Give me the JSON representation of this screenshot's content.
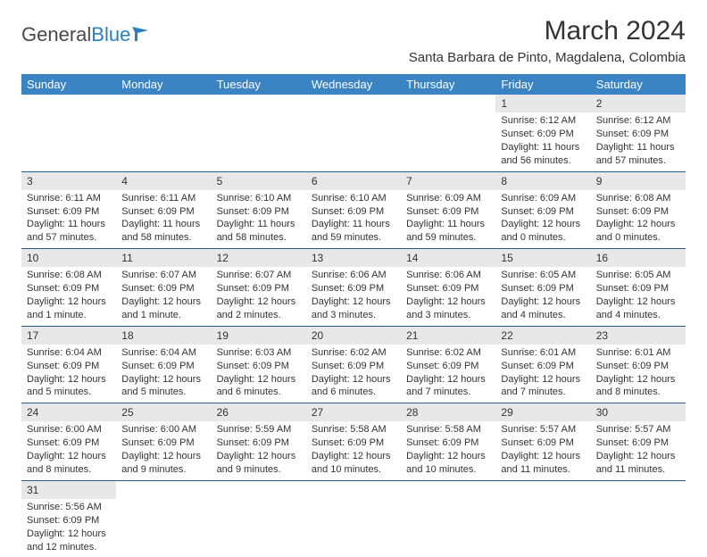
{
  "logo": {
    "part1": "General",
    "part2": "Blue"
  },
  "title": "March 2024",
  "location": "Santa Barbara de Pinto, Magdalena, Colombia",
  "colors": {
    "header_bg": "#3b84c4",
    "header_text": "#ffffff",
    "daynum_bg": "#e8e8e8",
    "border": "#2a5a8a",
    "text": "#333333",
    "logo_blue": "#2a7fbf"
  },
  "weekdays": [
    "Sunday",
    "Monday",
    "Tuesday",
    "Wednesday",
    "Thursday",
    "Friday",
    "Saturday"
  ],
  "weeks": [
    [
      null,
      null,
      null,
      null,
      null,
      {
        "n": "1",
        "sr": "Sunrise: 6:12 AM",
        "ss": "Sunset: 6:09 PM",
        "dl1": "Daylight: 11 hours",
        "dl2": "and 56 minutes."
      },
      {
        "n": "2",
        "sr": "Sunrise: 6:12 AM",
        "ss": "Sunset: 6:09 PM",
        "dl1": "Daylight: 11 hours",
        "dl2": "and 57 minutes."
      }
    ],
    [
      {
        "n": "3",
        "sr": "Sunrise: 6:11 AM",
        "ss": "Sunset: 6:09 PM",
        "dl1": "Daylight: 11 hours",
        "dl2": "and 57 minutes."
      },
      {
        "n": "4",
        "sr": "Sunrise: 6:11 AM",
        "ss": "Sunset: 6:09 PM",
        "dl1": "Daylight: 11 hours",
        "dl2": "and 58 minutes."
      },
      {
        "n": "5",
        "sr": "Sunrise: 6:10 AM",
        "ss": "Sunset: 6:09 PM",
        "dl1": "Daylight: 11 hours",
        "dl2": "and 58 minutes."
      },
      {
        "n": "6",
        "sr": "Sunrise: 6:10 AM",
        "ss": "Sunset: 6:09 PM",
        "dl1": "Daylight: 11 hours",
        "dl2": "and 59 minutes."
      },
      {
        "n": "7",
        "sr": "Sunrise: 6:09 AM",
        "ss": "Sunset: 6:09 PM",
        "dl1": "Daylight: 11 hours",
        "dl2": "and 59 minutes."
      },
      {
        "n": "8",
        "sr": "Sunrise: 6:09 AM",
        "ss": "Sunset: 6:09 PM",
        "dl1": "Daylight: 12 hours",
        "dl2": "and 0 minutes."
      },
      {
        "n": "9",
        "sr": "Sunrise: 6:08 AM",
        "ss": "Sunset: 6:09 PM",
        "dl1": "Daylight: 12 hours",
        "dl2": "and 0 minutes."
      }
    ],
    [
      {
        "n": "10",
        "sr": "Sunrise: 6:08 AM",
        "ss": "Sunset: 6:09 PM",
        "dl1": "Daylight: 12 hours",
        "dl2": "and 1 minute."
      },
      {
        "n": "11",
        "sr": "Sunrise: 6:07 AM",
        "ss": "Sunset: 6:09 PM",
        "dl1": "Daylight: 12 hours",
        "dl2": "and 1 minute."
      },
      {
        "n": "12",
        "sr": "Sunrise: 6:07 AM",
        "ss": "Sunset: 6:09 PM",
        "dl1": "Daylight: 12 hours",
        "dl2": "and 2 minutes."
      },
      {
        "n": "13",
        "sr": "Sunrise: 6:06 AM",
        "ss": "Sunset: 6:09 PM",
        "dl1": "Daylight: 12 hours",
        "dl2": "and 3 minutes."
      },
      {
        "n": "14",
        "sr": "Sunrise: 6:06 AM",
        "ss": "Sunset: 6:09 PM",
        "dl1": "Daylight: 12 hours",
        "dl2": "and 3 minutes."
      },
      {
        "n": "15",
        "sr": "Sunrise: 6:05 AM",
        "ss": "Sunset: 6:09 PM",
        "dl1": "Daylight: 12 hours",
        "dl2": "and 4 minutes."
      },
      {
        "n": "16",
        "sr": "Sunrise: 6:05 AM",
        "ss": "Sunset: 6:09 PM",
        "dl1": "Daylight: 12 hours",
        "dl2": "and 4 minutes."
      }
    ],
    [
      {
        "n": "17",
        "sr": "Sunrise: 6:04 AM",
        "ss": "Sunset: 6:09 PM",
        "dl1": "Daylight: 12 hours",
        "dl2": "and 5 minutes."
      },
      {
        "n": "18",
        "sr": "Sunrise: 6:04 AM",
        "ss": "Sunset: 6:09 PM",
        "dl1": "Daylight: 12 hours",
        "dl2": "and 5 minutes."
      },
      {
        "n": "19",
        "sr": "Sunrise: 6:03 AM",
        "ss": "Sunset: 6:09 PM",
        "dl1": "Daylight: 12 hours",
        "dl2": "and 6 minutes."
      },
      {
        "n": "20",
        "sr": "Sunrise: 6:02 AM",
        "ss": "Sunset: 6:09 PM",
        "dl1": "Daylight: 12 hours",
        "dl2": "and 6 minutes."
      },
      {
        "n": "21",
        "sr": "Sunrise: 6:02 AM",
        "ss": "Sunset: 6:09 PM",
        "dl1": "Daylight: 12 hours",
        "dl2": "and 7 minutes."
      },
      {
        "n": "22",
        "sr": "Sunrise: 6:01 AM",
        "ss": "Sunset: 6:09 PM",
        "dl1": "Daylight: 12 hours",
        "dl2": "and 7 minutes."
      },
      {
        "n": "23",
        "sr": "Sunrise: 6:01 AM",
        "ss": "Sunset: 6:09 PM",
        "dl1": "Daylight: 12 hours",
        "dl2": "and 8 minutes."
      }
    ],
    [
      {
        "n": "24",
        "sr": "Sunrise: 6:00 AM",
        "ss": "Sunset: 6:09 PM",
        "dl1": "Daylight: 12 hours",
        "dl2": "and 8 minutes."
      },
      {
        "n": "25",
        "sr": "Sunrise: 6:00 AM",
        "ss": "Sunset: 6:09 PM",
        "dl1": "Daylight: 12 hours",
        "dl2": "and 9 minutes."
      },
      {
        "n": "26",
        "sr": "Sunrise: 5:59 AM",
        "ss": "Sunset: 6:09 PM",
        "dl1": "Daylight: 12 hours",
        "dl2": "and 9 minutes."
      },
      {
        "n": "27",
        "sr": "Sunrise: 5:58 AM",
        "ss": "Sunset: 6:09 PM",
        "dl1": "Daylight: 12 hours",
        "dl2": "and 10 minutes."
      },
      {
        "n": "28",
        "sr": "Sunrise: 5:58 AM",
        "ss": "Sunset: 6:09 PM",
        "dl1": "Daylight: 12 hours",
        "dl2": "and 10 minutes."
      },
      {
        "n": "29",
        "sr": "Sunrise: 5:57 AM",
        "ss": "Sunset: 6:09 PM",
        "dl1": "Daylight: 12 hours",
        "dl2": "and 11 minutes."
      },
      {
        "n": "30",
        "sr": "Sunrise: 5:57 AM",
        "ss": "Sunset: 6:09 PM",
        "dl1": "Daylight: 12 hours",
        "dl2": "and 11 minutes."
      }
    ],
    [
      {
        "n": "31",
        "sr": "Sunrise: 5:56 AM",
        "ss": "Sunset: 6:09 PM",
        "dl1": "Daylight: 12 hours",
        "dl2": "and 12 minutes."
      },
      null,
      null,
      null,
      null,
      null,
      null
    ]
  ]
}
